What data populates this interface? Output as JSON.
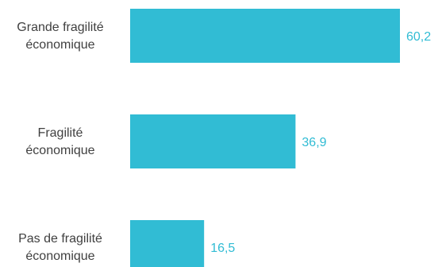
{
  "chart_data": {
    "type": "bar",
    "orientation": "horizontal",
    "categories": [
      [
        "Grande fragilité",
        "économique"
      ],
      [
        "Fragilité",
        "économique"
      ],
      [
        "Pas de fragilité",
        "économique"
      ]
    ],
    "values": [
      60.2,
      36.9,
      16.5
    ],
    "value_labels": [
      "60,2",
      "36,9",
      "16,5"
    ],
    "title": "",
    "xlabel": "",
    "ylabel": "",
    "xlim": [
      0,
      60.2
    ],
    "grid": false,
    "legend": "none",
    "bar_color": "#31BCD4",
    "label_color": "#404040",
    "value_color": "#31BCD4"
  }
}
